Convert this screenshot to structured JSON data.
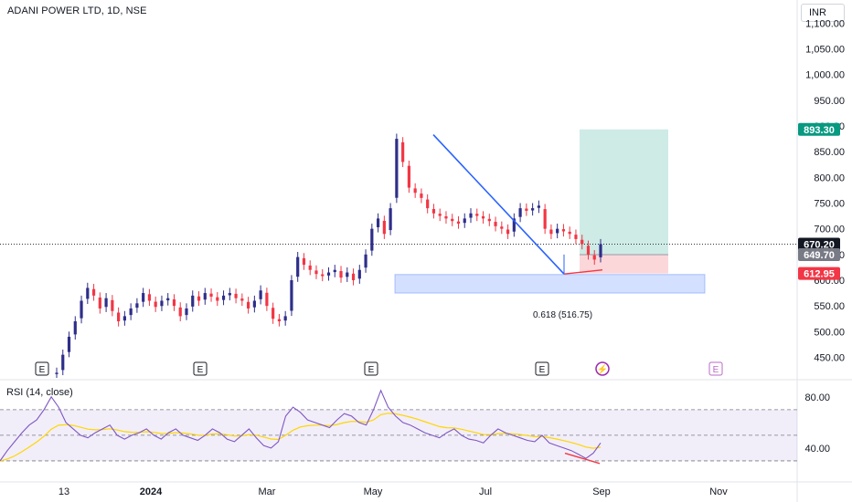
{
  "chart_data": {
    "type": "candlestick",
    "title": "ADANI POWER LTD, 1D, NSE",
    "currency": "INR",
    "price_axis": {
      "ticks": [
        "1,100.00",
        "1,050.00",
        "1,000.00",
        "950.00",
        "900.00",
        "850.00",
        "800.00",
        "750.00",
        "700.00",
        "650.00",
        "600.00",
        "550.00",
        "500.00",
        "450.00"
      ],
      "ylim": [
        410,
        1145
      ]
    },
    "time_axis": {
      "ticks": [
        "13",
        "2024",
        "Mar",
        "May",
        "Jul",
        "Sep",
        "Nov"
      ]
    },
    "price_labels": [
      {
        "value": "893.30",
        "price": 893.3,
        "color": "#089981"
      },
      {
        "value": "670.20",
        "price": 670.2,
        "color": "#131722"
      },
      {
        "value": "649.70",
        "price": 649.7,
        "color": "#787b86"
      },
      {
        "value": "612.95",
        "price": 612.95,
        "color": "#f23645"
      }
    ],
    "fib_label": "0.618 (516.75)",
    "last_price": 670.2,
    "series": [
      {
        "name": "price",
        "points": [
          [
            "13",
            420
          ],
          [
            "",
            455
          ],
          [
            "",
            490
          ],
          [
            "",
            520
          ],
          [
            "",
            560
          ],
          [
            "",
            585
          ],
          [
            "",
            570
          ],
          [
            "",
            545
          ],
          [
            "",
            565
          ],
          [
            "",
            540
          ],
          [
            "",
            520
          ],
          [
            "",
            530
          ],
          [
            "2024",
            545
          ],
          [
            "",
            555
          ],
          [
            "",
            575
          ],
          [
            "",
            560
          ],
          [
            "",
            548
          ],
          [
            "",
            560
          ],
          [
            "",
            565
          ],
          [
            "",
            550
          ],
          [
            "",
            530
          ],
          [
            "",
            545
          ],
          [
            "",
            570
          ],
          [
            "",
            560
          ],
          [
            "",
            575
          ],
          [
            "",
            568
          ],
          [
            "",
            560
          ],
          [
            "",
            570
          ],
          [
            "",
            575
          ],
          [
            "",
            565
          ],
          [
            "",
            560
          ],
          [
            "",
            545
          ],
          [
            "Mar",
            560
          ],
          [
            "",
            580
          ],
          [
            "",
            550
          ],
          [
            "",
            525
          ],
          [
            "",
            520
          ],
          [
            "",
            530
          ],
          [
            "",
            600
          ],
          [
            "",
            645
          ],
          [
            "",
            630
          ],
          [
            "",
            620
          ],
          [
            "",
            612
          ],
          [
            "",
            608
          ],
          [
            "",
            615
          ],
          [
            "",
            620
          ],
          [
            "",
            605
          ],
          [
            "",
            615
          ],
          [
            "",
            600
          ],
          [
            "May",
            620
          ],
          [
            "",
            650
          ],
          [
            "",
            700
          ],
          [
            "",
            720
          ],
          [
            "",
            690
          ],
          [
            "",
            740
          ],
          [
            "",
            875
          ],
          [
            "",
            830
          ],
          [
            "",
            780
          ],
          [
            "",
            770
          ],
          [
            "",
            760
          ],
          [
            "",
            740
          ],
          [
            "",
            730
          ],
          [
            "",
            725
          ],
          [
            "",
            720
          ],
          [
            "",
            715
          ],
          [
            "",
            710
          ],
          [
            "",
            720
          ],
          [
            "",
            730
          ],
          [
            "",
            725
          ],
          [
            "Jul",
            720
          ],
          [
            "",
            715
          ],
          [
            "",
            705
          ],
          [
            "",
            700
          ],
          [
            "",
            690
          ],
          [
            "",
            720
          ],
          [
            "",
            740
          ],
          [
            "",
            735
          ],
          [
            "",
            740
          ],
          [
            "",
            745
          ],
          [
            "",
            700
          ],
          [
            "",
            690
          ],
          [
            "",
            700
          ],
          [
            "",
            695
          ],
          [
            "",
            690
          ],
          [
            "",
            680
          ],
          [
            "",
            670
          ],
          [
            "",
            650
          ],
          [
            "",
            640
          ],
          [
            "",
            670
          ]
        ]
      }
    ],
    "rsi": {
      "label": "RSI (14, close)",
      "ticks": [
        "80.00",
        "40.00"
      ],
      "upper": 70,
      "lower": 30,
      "values": [
        30,
        38,
        45,
        52,
        58,
        62,
        70,
        80,
        72,
        60,
        55,
        50,
        48,
        52,
        55,
        58,
        50,
        47,
        50,
        52,
        55,
        50,
        47,
        52,
        55,
        50,
        48,
        46,
        50,
        55,
        52,
        47,
        45,
        50,
        55,
        48,
        42,
        40,
        45,
        65,
        72,
        68,
        62,
        60,
        58,
        56,
        62,
        67,
        65,
        60,
        58,
        70,
        85,
        72,
        65,
        60,
        58,
        55,
        52,
        50,
        48,
        52,
        55,
        50,
        47,
        46,
        44,
        50,
        55,
        52,
        50,
        48,
        46,
        45,
        50,
        44,
        42,
        40,
        38,
        35,
        32,
        36,
        44
      ]
    },
    "earnings_markers": [
      "E",
      "E",
      "E",
      "E",
      "E"
    ],
    "colors": {
      "up": "#089981",
      "down": "#f23645",
      "body_down": "#f23645",
      "body_up": "#2e2e8a",
      "trend": "#2962ff",
      "rsi_line": "#7e57c2",
      "rsi_ma": "#ffd600"
    }
  }
}
